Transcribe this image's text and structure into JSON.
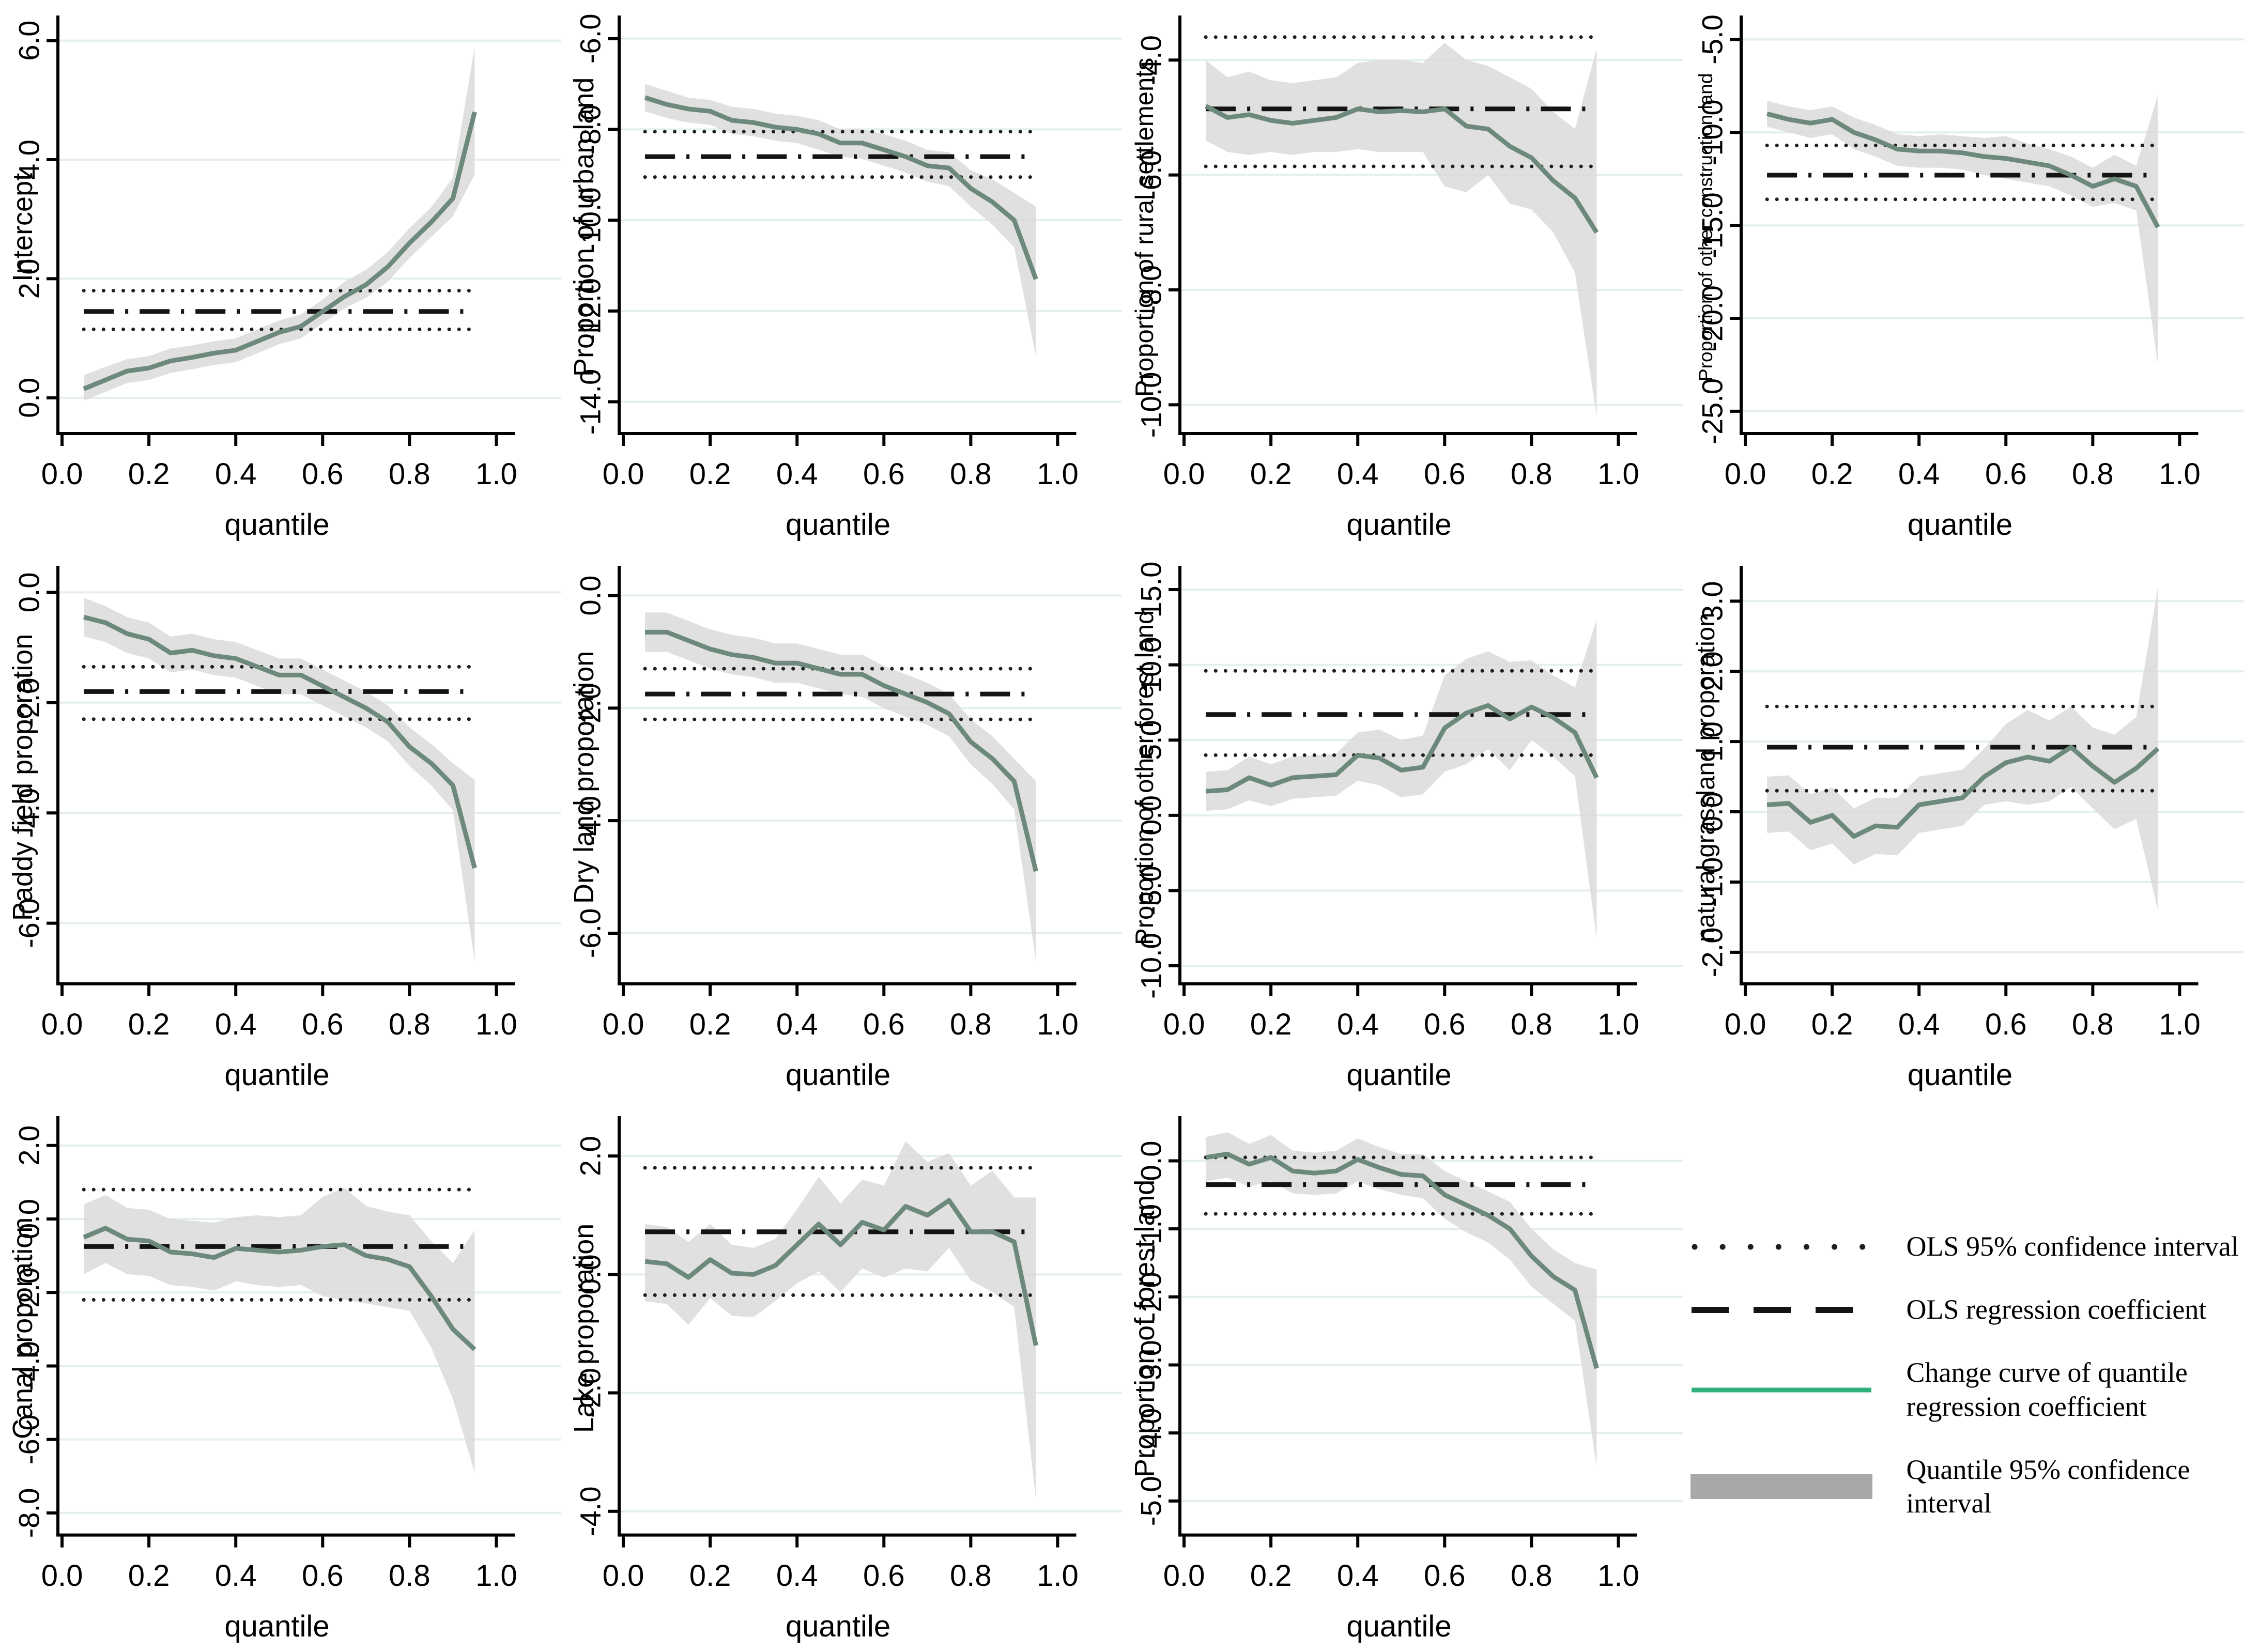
{
  "colors": {
    "curve": "#6d897b",
    "legend_curve": "#2fb07c",
    "band": "#d9d9d9",
    "legend_band": "#a8a8a8",
    "grid": "#e4eef1",
    "axis": "#000000",
    "ols": "#141414",
    "ols_ci": "#1f1f1f"
  },
  "legend": {
    "items": [
      {
        "swatch": "dotted-line",
        "label": "OLS 95% confidence interval"
      },
      {
        "swatch": "dashed-line",
        "label": "OLS regression coefficient"
      },
      {
        "swatch": "green-line",
        "label": "Change curve of quantile regression coefficient"
      },
      {
        "swatch": "gray-band",
        "label": "Quantile 95% confidence interval"
      }
    ]
  },
  "chart_data": [
    {
      "type": "line",
      "ylabel": "Intercept",
      "xlabel": "quantile",
      "yticks": [
        6,
        4,
        2,
        0
      ],
      "ylim": [
        -0.6,
        6.3
      ],
      "xticks": [
        0,
        0.2,
        0.4,
        0.6,
        0.8,
        1.0
      ],
      "x": [
        0.05,
        0.1,
        0.15,
        0.2,
        0.25,
        0.3,
        0.35,
        0.4,
        0.45,
        0.5,
        0.55,
        0.6,
        0.65,
        0.7,
        0.75,
        0.8,
        0.85,
        0.9,
        0.95
      ],
      "curve": [
        0.15,
        0.3,
        0.45,
        0.5,
        0.62,
        0.68,
        0.75,
        0.8,
        0.95,
        1.1,
        1.2,
        1.45,
        1.7,
        1.9,
        2.2,
        2.6,
        2.95,
        3.35,
        4.8
      ],
      "band_hi": [
        0.38,
        0.52,
        0.65,
        0.7,
        0.83,
        0.88,
        0.95,
        1.0,
        1.15,
        1.3,
        1.4,
        1.65,
        1.95,
        2.15,
        2.45,
        2.85,
        3.2,
        3.7,
        5.9
      ],
      "band_lo": [
        -0.05,
        0.1,
        0.25,
        0.3,
        0.42,
        0.48,
        0.55,
        0.6,
        0.75,
        0.9,
        1.0,
        1.25,
        1.5,
        1.68,
        1.95,
        2.35,
        2.7,
        3.05,
        3.75
      ],
      "ols": 1.45,
      "ols_hi": 1.8,
      "ols_lo": 1.15
    },
    {
      "type": "line",
      "ylabel": "Proportion of urban land",
      "xlabel": "quantile",
      "yticks": [
        -6,
        -8,
        -10,
        -12,
        -14
      ],
      "ylim": [
        -14.7,
        -5.65
      ],
      "xticks": [
        0,
        0.2,
        0.4,
        0.6,
        0.8,
        1.0
      ],
      "x": [
        0.05,
        0.1,
        0.15,
        0.2,
        0.25,
        0.3,
        0.35,
        0.4,
        0.45,
        0.5,
        0.55,
        0.6,
        0.65,
        0.7,
        0.75,
        0.8,
        0.85,
        0.9,
        0.95
      ],
      "curve": [
        -7.3,
        -7.45,
        -7.55,
        -7.6,
        -7.8,
        -7.85,
        -7.95,
        -8.0,
        -8.1,
        -8.3,
        -8.3,
        -8.45,
        -8.6,
        -8.8,
        -8.85,
        -9.3,
        -9.6,
        -10.0,
        -11.3
      ],
      "band_hi": [
        -7.0,
        -7.15,
        -7.3,
        -7.35,
        -7.5,
        -7.55,
        -7.65,
        -7.7,
        -7.8,
        -8.0,
        -8.0,
        -8.1,
        -8.25,
        -8.45,
        -8.5,
        -8.9,
        -9.1,
        -9.4,
        -9.7
      ],
      "band_lo": [
        -7.6,
        -7.75,
        -7.85,
        -7.9,
        -8.1,
        -8.15,
        -8.25,
        -8.3,
        -8.45,
        -8.6,
        -8.65,
        -8.8,
        -8.95,
        -9.15,
        -9.25,
        -9.7,
        -10.1,
        -10.6,
        -13.0
      ],
      "ols": -8.6,
      "ols_hi": -8.05,
      "ols_lo": -9.05
    },
    {
      "type": "line",
      "ylabel": "Proportion of rural settlements",
      "xlabel": "quantile",
      "yticks": [
        -4,
        -6,
        -8,
        -10
      ],
      "ylim": [
        -10.5,
        -3.35
      ],
      "xticks": [
        0,
        0.2,
        0.4,
        0.6,
        0.8,
        1.0
      ],
      "x": [
        0.05,
        0.1,
        0.15,
        0.2,
        0.25,
        0.3,
        0.35,
        0.4,
        0.45,
        0.5,
        0.55,
        0.6,
        0.65,
        0.7,
        0.75,
        0.8,
        0.85,
        0.9,
        0.95
      ],
      "curve": [
        -4.8,
        -5.0,
        -4.95,
        -5.05,
        -5.1,
        -5.05,
        -5.0,
        -4.85,
        -4.9,
        -4.88,
        -4.9,
        -4.85,
        -5.15,
        -5.2,
        -5.5,
        -5.7,
        -6.1,
        -6.4,
        -7.0
      ],
      "band_hi": [
        -4.0,
        -4.3,
        -4.2,
        -4.35,
        -4.4,
        -4.35,
        -4.3,
        -4.05,
        -4.0,
        -4.0,
        -4.05,
        -3.7,
        -4.0,
        -4.1,
        -4.3,
        -4.5,
        -4.9,
        -5.2,
        -3.8
      ],
      "band_lo": [
        -5.4,
        -5.6,
        -5.65,
        -5.6,
        -5.65,
        -5.6,
        -5.6,
        -5.55,
        -5.6,
        -5.6,
        -5.6,
        -6.2,
        -6.3,
        -6.0,
        -6.5,
        -6.6,
        -7.0,
        -7.7,
        -10.2
      ],
      "ols": -4.85,
      "ols_hi": -3.6,
      "ols_lo": -5.85
    },
    {
      "type": "line",
      "ylabel": "Proportion of other construction land",
      "xlabel": "quantile",
      "yticks": [
        -5,
        -10,
        -15,
        -20,
        -25
      ],
      "ylim": [
        -26.2,
        -4.1
      ],
      "xticks": [
        0,
        0.2,
        0.4,
        0.6,
        0.8,
        1.0
      ],
      "x": [
        0.05,
        0.1,
        0.15,
        0.2,
        0.25,
        0.3,
        0.35,
        0.4,
        0.45,
        0.5,
        0.55,
        0.6,
        0.65,
        0.7,
        0.75,
        0.8,
        0.85,
        0.9,
        0.95
      ],
      "curve": [
        -9.0,
        -9.3,
        -9.5,
        -9.3,
        -10.0,
        -10.4,
        -10.9,
        -11.0,
        -11.0,
        -11.1,
        -11.3,
        -11.4,
        -11.6,
        -11.8,
        -12.3,
        -12.9,
        -12.5,
        -12.9,
        -15.1
      ],
      "band_hi": [
        -8.3,
        -8.6,
        -8.8,
        -8.6,
        -9.2,
        -9.6,
        -10.1,
        -10.2,
        -10.1,
        -10.2,
        -10.3,
        -10.2,
        -10.6,
        -10.9,
        -11.3,
        -11.9,
        -11.2,
        -11.8,
        -8.0
      ],
      "band_lo": [
        -9.7,
        -10.0,
        -10.3,
        -10.1,
        -10.9,
        -11.3,
        -11.8,
        -11.9,
        -11.9,
        -12.0,
        -12.3,
        -12.5,
        -12.7,
        -12.9,
        -13.4,
        -14.0,
        -13.8,
        -14.2,
        -22.5
      ],
      "ols": -12.3,
      "ols_hi": -10.7,
      "ols_lo": -13.6
    },
    {
      "type": "line",
      "ylabel": "Paddy field proporation",
      "xlabel": "quantile",
      "yticks": [
        0,
        -2,
        -4,
        -6
      ],
      "ylim": [
        -7.1,
        0.35
      ],
      "xticks": [
        0,
        0.2,
        0.4,
        0.6,
        0.8,
        1.0
      ],
      "x": [
        0.05,
        0.1,
        0.15,
        0.2,
        0.25,
        0.3,
        0.35,
        0.4,
        0.45,
        0.5,
        0.55,
        0.6,
        0.65,
        0.7,
        0.75,
        0.8,
        0.85,
        0.9,
        0.95
      ],
      "curve": [
        -0.45,
        -0.55,
        -0.75,
        -0.85,
        -1.1,
        -1.05,
        -1.15,
        -1.2,
        -1.35,
        -1.5,
        -1.5,
        -1.7,
        -1.9,
        -2.1,
        -2.35,
        -2.8,
        -3.1,
        -3.5,
        -5.0
      ],
      "band_hi": [
        -0.1,
        -0.25,
        -0.45,
        -0.55,
        -0.8,
        -0.75,
        -0.85,
        -0.9,
        -1.05,
        -1.2,
        -1.2,
        -1.4,
        -1.6,
        -1.8,
        -2.05,
        -2.45,
        -2.75,
        -3.1,
        -3.4
      ],
      "band_lo": [
        -0.8,
        -0.9,
        -1.1,
        -1.2,
        -1.45,
        -1.4,
        -1.5,
        -1.55,
        -1.7,
        -1.85,
        -1.85,
        -2.05,
        -2.25,
        -2.45,
        -2.7,
        -3.15,
        -3.5,
        -3.95,
        -6.7
      ],
      "ols": -1.8,
      "ols_hi": -1.35,
      "ols_lo": -2.3
    },
    {
      "type": "line",
      "ylabel": "Dry land proporation",
      "xlabel": "quantile",
      "yticks": [
        0,
        -2,
        -4,
        -6
      ],
      "ylim": [
        -6.9,
        0.4
      ],
      "xticks": [
        0,
        0.2,
        0.4,
        0.6,
        0.8,
        1.0
      ],
      "x": [
        0.05,
        0.1,
        0.15,
        0.2,
        0.25,
        0.3,
        0.35,
        0.4,
        0.45,
        0.5,
        0.55,
        0.6,
        0.65,
        0.7,
        0.75,
        0.8,
        0.85,
        0.9,
        0.95
      ],
      "curve": [
        -0.65,
        -0.65,
        -0.8,
        -0.95,
        -1.05,
        -1.1,
        -1.2,
        -1.2,
        -1.3,
        -1.4,
        -1.4,
        -1.6,
        -1.75,
        -1.9,
        -2.1,
        -2.6,
        -2.9,
        -3.3,
        -4.9
      ],
      "band_hi": [
        -0.3,
        -0.3,
        -0.45,
        -0.6,
        -0.7,
        -0.75,
        -0.85,
        -0.85,
        -0.95,
        -1.05,
        -1.05,
        -1.25,
        -1.4,
        -1.55,
        -1.75,
        -2.2,
        -2.5,
        -2.9,
        -3.3
      ],
      "band_lo": [
        -1.0,
        -1.0,
        -1.15,
        -1.3,
        -1.4,
        -1.45,
        -1.55,
        -1.55,
        -1.65,
        -1.75,
        -1.8,
        -2.0,
        -2.15,
        -2.3,
        -2.5,
        -3.0,
        -3.35,
        -3.8,
        -6.5
      ],
      "ols": -1.75,
      "ols_hi": -1.3,
      "ols_lo": -2.2
    },
    {
      "type": "line",
      "ylabel": "Proportion of other forest land",
      "xlabel": "quantile",
      "yticks": [
        15,
        10,
        5,
        0,
        -5,
        -10
      ],
      "ylim": [
        -11.2,
        16.1
      ],
      "xticks": [
        0,
        0.2,
        0.4,
        0.6,
        0.8,
        1.0
      ],
      "x": [
        0.05,
        0.1,
        0.15,
        0.2,
        0.25,
        0.3,
        0.35,
        0.4,
        0.45,
        0.5,
        0.55,
        0.6,
        0.65,
        0.7,
        0.75,
        0.8,
        0.85,
        0.9,
        0.95
      ],
      "curve": [
        1.6,
        1.7,
        2.5,
        2.0,
        2.5,
        2.6,
        2.7,
        4.0,
        3.8,
        3.0,
        3.2,
        5.8,
        6.8,
        7.3,
        6.4,
        7.2,
        6.5,
        5.5,
        2.5
      ],
      "band_hi": [
        2.9,
        3.0,
        3.9,
        3.4,
        3.9,
        4.0,
        4.1,
        5.5,
        5.7,
        5.0,
        5.3,
        9.3,
        10.4,
        10.9,
        10.2,
        10.3,
        9.3,
        8.5,
        13.0
      ],
      "band_lo": [
        0.3,
        0.4,
        1.0,
        0.6,
        1.1,
        1.2,
        1.3,
        2.3,
        2.0,
        1.2,
        1.4,
        2.9,
        3.4,
        4.4,
        3.0,
        5.0,
        3.9,
        2.6,
        -8.2
      ],
      "ols": 6.7,
      "ols_hi": 9.6,
      "ols_lo": 4.0
    },
    {
      "type": "line",
      "ylabel": "natural grassland proporation",
      "xlabel": "quantile",
      "yticks": [
        3,
        2,
        1,
        0,
        -1,
        -2
      ],
      "ylim": [
        -2.45,
        3.4
      ],
      "xticks": [
        0,
        0.2,
        0.4,
        0.6,
        0.8,
        1.0
      ],
      "x": [
        0.05,
        0.1,
        0.15,
        0.2,
        0.25,
        0.3,
        0.35,
        0.4,
        0.45,
        0.5,
        0.55,
        0.6,
        0.65,
        0.7,
        0.75,
        0.8,
        0.85,
        0.9,
        0.95
      ],
      "curve": [
        0.1,
        0.12,
        -0.15,
        -0.05,
        -0.35,
        -0.2,
        -0.22,
        0.1,
        0.15,
        0.2,
        0.5,
        0.7,
        0.78,
        0.72,
        0.92,
        0.65,
        0.42,
        0.62,
        0.9
      ],
      "band_hi": [
        0.5,
        0.52,
        0.25,
        0.35,
        0.05,
        0.2,
        0.2,
        0.5,
        0.55,
        0.6,
        0.9,
        1.25,
        1.45,
        1.3,
        1.5,
        1.2,
        1.1,
        1.35,
        3.2
      ],
      "band_lo": [
        -0.3,
        -0.28,
        -0.55,
        -0.45,
        -0.75,
        -0.6,
        -0.62,
        -0.3,
        -0.25,
        -0.2,
        0.1,
        0.15,
        0.1,
        0.15,
        0.35,
        0.05,
        -0.25,
        -0.1,
        -1.4
      ],
      "ols": 0.92,
      "ols_hi": 1.5,
      "ols_lo": 0.3
    },
    {
      "type": "line",
      "ylabel": "Canal proporation",
      "xlabel": "quantile",
      "yticks": [
        2,
        0,
        -2,
        -4,
        -6,
        -8
      ],
      "ylim": [
        -8.6,
        2.6
      ],
      "xticks": [
        0,
        0.2,
        0.4,
        0.6,
        0.8,
        1.0
      ],
      "x": [
        0.05,
        0.1,
        0.15,
        0.2,
        0.25,
        0.3,
        0.35,
        0.4,
        0.45,
        0.5,
        0.55,
        0.6,
        0.65,
        0.7,
        0.75,
        0.8,
        0.85,
        0.9,
        0.95
      ],
      "curve": [
        -0.5,
        -0.25,
        -0.55,
        -0.6,
        -0.9,
        -0.95,
        -1.05,
        -0.8,
        -0.85,
        -0.9,
        -0.85,
        -0.75,
        -0.7,
        -1.0,
        -1.1,
        -1.3,
        -2.1,
        -3.0,
        -3.55
      ],
      "band_hi": [
        0.4,
        0.65,
        0.3,
        0.25,
        0.0,
        -0.05,
        -0.1,
        0.05,
        0.1,
        0.05,
        0.1,
        0.6,
        0.85,
        0.35,
        0.2,
        0.1,
        -0.6,
        -1.2,
        -0.3
      ],
      "band_lo": [
        -1.5,
        -1.2,
        -1.5,
        -1.55,
        -1.8,
        -1.85,
        -1.95,
        -1.7,
        -1.8,
        -1.85,
        -1.8,
        -2.1,
        -2.2,
        -2.3,
        -2.4,
        -2.5,
        -3.5,
        -4.9,
        -6.9
      ],
      "ols": -0.75,
      "ols_hi": 0.8,
      "ols_lo": -2.2
    },
    {
      "type": "line",
      "ylabel": "Lake proporation",
      "xlabel": "quantile",
      "yticks": [
        2,
        0,
        -2,
        -4
      ],
      "ylim": [
        -4.4,
        2.55
      ],
      "xticks": [
        0,
        0.2,
        0.4,
        0.6,
        0.8,
        1.0
      ],
      "x": [
        0.05,
        0.1,
        0.15,
        0.2,
        0.25,
        0.3,
        0.35,
        0.4,
        0.45,
        0.5,
        0.55,
        0.6,
        0.65,
        0.7,
        0.75,
        0.8,
        0.85,
        0.9,
        0.95
      ],
      "curve": [
        0.22,
        0.18,
        -0.05,
        0.25,
        0.02,
        0.0,
        0.15,
        0.5,
        0.85,
        0.5,
        0.88,
        0.75,
        1.15,
        1.0,
        1.25,
        0.72,
        0.72,
        0.55,
        -1.2
      ],
      "band_hi": [
        0.85,
        0.8,
        0.55,
        0.85,
        0.5,
        0.45,
        0.6,
        1.1,
        1.65,
        1.2,
        1.6,
        1.5,
        2.25,
        1.9,
        2.05,
        1.5,
        1.75,
        1.3,
        1.3
      ],
      "band_lo": [
        -0.45,
        -0.5,
        -0.85,
        -0.4,
        -0.7,
        -0.72,
        -0.45,
        -0.15,
        0.05,
        -0.3,
        0.1,
        -0.05,
        0.1,
        0.05,
        0.45,
        -0.1,
        -0.3,
        -0.55,
        -3.8
      ],
      "ols": 0.72,
      "ols_hi": 1.8,
      "ols_lo": -0.35
    },
    {
      "type": "line",
      "ylabel": "Proportion of forest land",
      "xlabel": "quantile",
      "yticks": [
        0,
        -1,
        -2,
        -3,
        -4,
        -5
      ],
      "ylim": [
        -5.5,
        0.55
      ],
      "xticks": [
        0,
        0.2,
        0.4,
        0.6,
        0.8,
        1.0
      ],
      "x": [
        0.05,
        0.1,
        0.15,
        0.2,
        0.25,
        0.3,
        0.35,
        0.4,
        0.45,
        0.5,
        0.55,
        0.6,
        0.65,
        0.7,
        0.75,
        0.8,
        0.85,
        0.9,
        0.95
      ],
      "curve": [
        0.05,
        0.1,
        -0.05,
        0.05,
        -0.15,
        -0.18,
        -0.15,
        0.02,
        -0.1,
        -0.2,
        -0.22,
        -0.5,
        -0.65,
        -0.8,
        -1.0,
        -1.4,
        -1.7,
        -1.9,
        -3.05
      ],
      "band_hi": [
        0.35,
        0.42,
        0.25,
        0.38,
        0.15,
        0.12,
        0.15,
        0.33,
        0.2,
        0.1,
        0.1,
        -0.15,
        -0.3,
        -0.45,
        -0.6,
        -1.0,
        -1.3,
        -1.5,
        -1.6
      ],
      "band_lo": [
        -0.3,
        -0.25,
        -0.38,
        -0.3,
        -0.48,
        -0.5,
        -0.48,
        -0.3,
        -0.42,
        -0.5,
        -0.55,
        -0.85,
        -1.05,
        -1.2,
        -1.45,
        -1.85,
        -2.1,
        -2.35,
        -4.5
      ],
      "ols": -0.35,
      "ols_hi": 0.05,
      "ols_lo": -0.78
    }
  ]
}
